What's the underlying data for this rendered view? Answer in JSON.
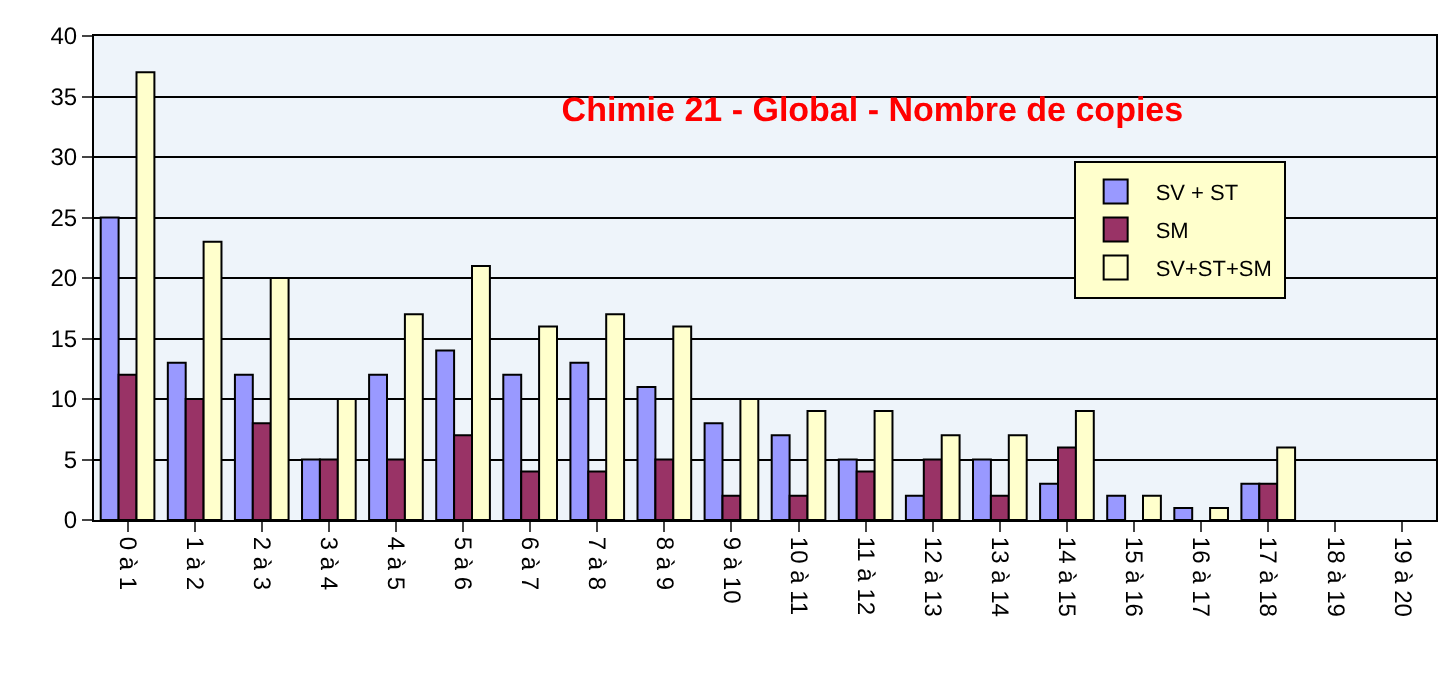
{
  "chart_data": {
    "type": "bar",
    "title": "Chimie 21 - Global - Nombre de copies",
    "categories": [
      "0 à 1",
      "1 à 2",
      "2 à 3",
      "3 à 4",
      "4 à 5",
      "5 à 6",
      "6 à 7",
      "7 à 8",
      "8 à 9",
      "9 à 10",
      "10 à 11",
      "11 à 12",
      "12 à 13",
      "13 à 14",
      "14 à 15",
      "15 à 16",
      "16 à 17",
      "17 à 18",
      "18 à 19",
      "19 à 20"
    ],
    "series": [
      {
        "name": "SV + ST",
        "color": "#9999ff",
        "values": [
          25,
          13,
          12,
          5,
          12,
          14,
          12,
          13,
          11,
          8,
          7,
          5,
          2,
          5,
          3,
          2,
          1,
          3,
          0,
          0
        ]
      },
      {
        "name": "SM",
        "color": "#993366",
        "values": [
          12,
          10,
          8,
          5,
          5,
          7,
          4,
          4,
          5,
          2,
          2,
          4,
          5,
          2,
          6,
          0,
          0,
          3,
          0,
          0
        ]
      },
      {
        "name": "SV+ST+SM",
        "color": "#ffffcc",
        "values": [
          37,
          23,
          20,
          10,
          17,
          21,
          16,
          17,
          16,
          10,
          9,
          9,
          7,
          7,
          9,
          2,
          1,
          6,
          0,
          0
        ]
      }
    ],
    "ylim": [
      0,
      40
    ],
    "yticks": [
      0,
      5,
      10,
      15,
      20,
      25,
      30,
      35,
      40
    ],
    "grid": "y",
    "legend": "right"
  }
}
